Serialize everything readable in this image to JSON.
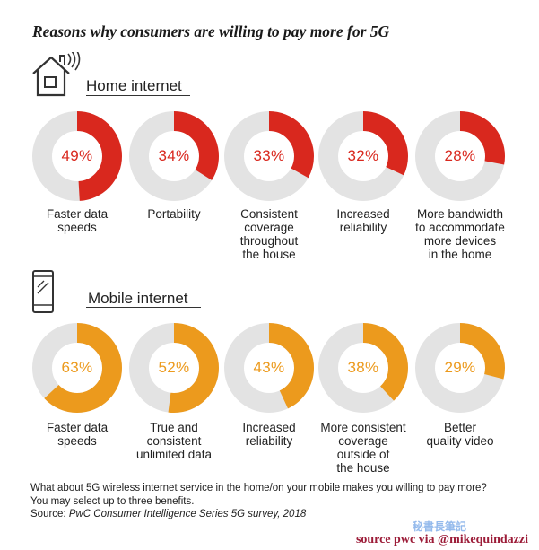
{
  "title": "Reasons why consumers are willing to pay more for 5G",
  "colors": {
    "home_accent": "#d9281e",
    "mobile_accent": "#ec9a1d",
    "track": "#e3e3e3",
    "credit": "#9c1c38"
  },
  "sections": [
    {
      "label": "Home internet",
      "icon": "house-wifi-icon"
    },
    {
      "label": "Mobile internet",
      "icon": "smartphone-icon"
    }
  ],
  "chart_data": [
    {
      "type": "pie",
      "title": "Home internet",
      "categories": [
        "Faster data speeds",
        "Portability",
        "Consistent coverage throughout the house",
        "Increased reliability",
        "More bandwidth to accommodate more devices in the home"
      ],
      "values": [
        49,
        34,
        33,
        32,
        28
      ],
      "value_labels": [
        "49%",
        "34%",
        "33%",
        "32%",
        "28%"
      ],
      "label_lines": [
        [
          "Faster data",
          "speeds"
        ],
        [
          "Portability"
        ],
        [
          "Consistent",
          "coverage",
          "throughout",
          "the house"
        ],
        [
          "Increased",
          "reliability"
        ],
        [
          "More bandwidth",
          "to accommodate",
          "more devices",
          "in the home"
        ]
      ]
    },
    {
      "type": "pie",
      "title": "Mobile internet",
      "categories": [
        "Faster data speeds",
        "True and consistent unlimited data",
        "Increased reliability",
        "More consistent coverage outside of the house",
        "Better quality video"
      ],
      "values": [
        63,
        52,
        43,
        38,
        29
      ],
      "value_labels": [
        "63%",
        "52%",
        "43%",
        "38%",
        "29%"
      ],
      "label_lines": [
        [
          "Faster data",
          "speeds"
        ],
        [
          "True and",
          "consistent",
          "unlimited data"
        ],
        [
          "Increased",
          "reliability"
        ],
        [
          "More consistent",
          "coverage",
          "outside of",
          "the house"
        ],
        [
          "Better",
          "quality video"
        ]
      ]
    }
  ],
  "footer": {
    "question": "What about 5G wireless internet service in the home/on your mobile makes you willing to pay more?",
    "instruction": "You may select up to three benefits.",
    "source_prefix": "Source: ",
    "source_title": "PwC Consumer Intelligence Series 5G survey, 2018"
  },
  "credit": "source pwc via @mikequindazzi",
  "watermark": "秘書長筆記"
}
